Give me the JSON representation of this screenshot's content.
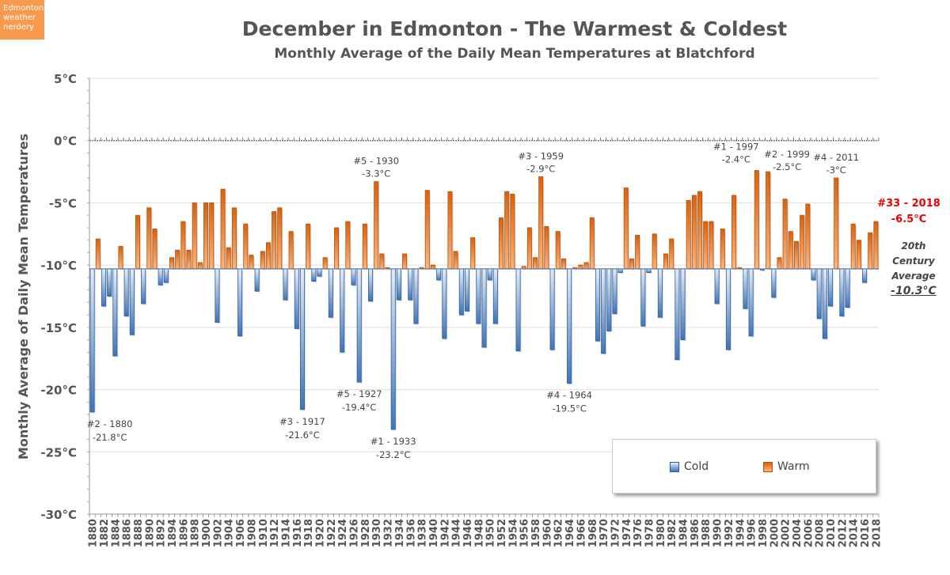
{
  "badge": "Edmonton weather nerdery",
  "title": "December in Edmonton - The Warmest & Coldest",
  "subtitle": "Monthly Average of the Daily Mean Temperatures at Blatchford",
  "legend": {
    "cold": "Cold",
    "warm": "Warm"
  },
  "average_note": {
    "line1": "20th",
    "line2": "Century",
    "line3": "Average",
    "value": "-10.3°C"
  },
  "latest_note": {
    "rank": "#33 - 2018",
    "value": "-6.5°C"
  },
  "colors": {
    "warm": "#e8761f",
    "cold": "#4a7ebf",
    "latest": "#ee0000",
    "badge": "#f79a4d"
  },
  "chart_data": {
    "type": "bar",
    "title": "December in Edmonton - The Warmest & Coldest",
    "subtitle": "Monthly Average of the Daily Mean Temperatures at Blatchford",
    "ylabel": "Monthly Average  of Daily Mean Temperatures",
    "xlabel": "",
    "ylim": [
      -30,
      5
    ],
    "baseline": -10.3,
    "yticks": [
      "5°C",
      "0°C",
      "-5°C",
      "-10°C",
      "-15°C",
      "-20°C",
      "-25°C",
      "-30°C"
    ],
    "ytick_values": [
      5,
      0,
      -5,
      -10,
      -15,
      -20,
      -25,
      -30
    ],
    "grid": true,
    "legend_position": "bottom-right",
    "x_start": 1880,
    "x_end": 2018,
    "x_tick_step": 2,
    "values": [
      -21.8,
      -7.9,
      -13.3,
      -12.5,
      -17.3,
      -8.5,
      -14.1,
      -15.6,
      -6.0,
      -13.1,
      -5.4,
      -7.1,
      -11.6,
      -11.4,
      -9.4,
      -8.8,
      -6.5,
      -8.8,
      -5.0,
      -9.8,
      -5.0,
      -5.0,
      -14.6,
      -3.9,
      -8.6,
      -5.4,
      -15.7,
      -6.7,
      -9.2,
      -12.1,
      -8.9,
      -8.2,
      -5.7,
      -5.4,
      -12.8,
      -7.3,
      -15.1,
      -21.6,
      -6.7,
      -11.3,
      -10.9,
      -9.4,
      -14.2,
      -7.0,
      -17.0,
      -6.5,
      -11.6,
      -19.4,
      -6.7,
      -12.9,
      -3.3,
      -9.1,
      -10.2,
      -23.2,
      -12.8,
      -9.1,
      -12.8,
      -14.7,
      -10.2,
      -4.0,
      -10.0,
      -11.2,
      -15.9,
      -4.1,
      -8.9,
      -14.0,
      -13.7,
      -7.8,
      -14.7,
      -16.6,
      -11.2,
      -14.7,
      -6.2,
      -4.1,
      -4.3,
      -16.9,
      -10.1,
      -7.0,
      -9.4,
      -2.9,
      -6.9,
      -16.8,
      -7.3,
      -9.5,
      -19.5,
      -10.2,
      -10.0,
      -9.8,
      -6.2,
      -16.1,
      -17.1,
      -15.3,
      -13.9,
      -10.6,
      -3.8,
      -9.5,
      -7.6,
      -14.9,
      -10.6,
      -7.5,
      -14.2,
      -9.1,
      -7.9,
      -17.6,
      -16.0,
      -4.8,
      -4.4,
      -4.1,
      -6.5,
      -6.5,
      -13.1,
      -7.1,
      -16.8,
      -4.4,
      -10.2,
      -13.5,
      -15.7,
      -2.4,
      -10.4,
      -2.5,
      -12.6,
      -9.4,
      -4.7,
      -7.3,
      -8.1,
      -6.0,
      -5.1,
      -11.2,
      -14.3,
      -15.9,
      -13.3,
      -3.0,
      -14.1,
      -13.4,
      -6.7,
      -8.0,
      -11.4,
      -7.4,
      -6.5
    ],
    "annotations": [
      {
        "year": 1880,
        "label": "#2 - 1880",
        "value": "-21.8°C"
      },
      {
        "year": 1917,
        "label": "#3 - 1917",
        "value": "-21.6°C"
      },
      {
        "year": 1927,
        "label": "#5 - 1927",
        "value": "-19.4°C"
      },
      {
        "year": 1930,
        "label": "#5 - 1930",
        "value": "-3.3°C"
      },
      {
        "year": 1933,
        "label": "#1 - 1933",
        "value": "-23.2°C"
      },
      {
        "year": 1959,
        "label": "#3 - 1959",
        "value": "-2.9°C"
      },
      {
        "year": 1964,
        "label": "#4 - 1964",
        "value": "-19.5°C"
      },
      {
        "year": 1997,
        "label": "#1 - 1997",
        "value": "-2.4°C"
      },
      {
        "year": 1999,
        "label": "#2 - 1999",
        "value": "-2.5°C"
      },
      {
        "year": 2011,
        "label": "#4 - 2011",
        "value": "-3°C"
      }
    ]
  }
}
